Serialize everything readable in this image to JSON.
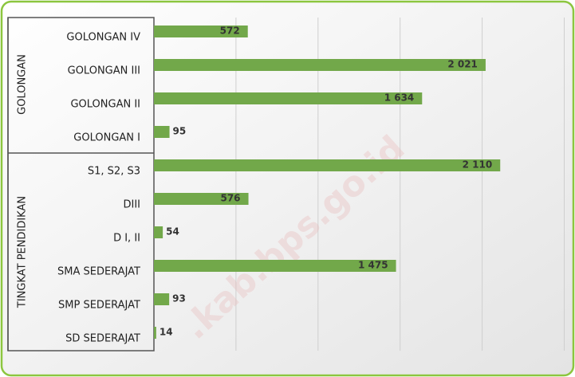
{
  "chart_data": {
    "type": "bar",
    "orientation": "horizontal",
    "categories": [
      "GOLONGAN IV",
      "GOLONGAN III",
      "GOLONGAN II",
      "GOLONGAN I",
      "S1, S2, S3",
      "DIII",
      "D I, II",
      "SMA SEDERAJAT",
      "SMP SEDERAJAT",
      "SD SEDERAJAT"
    ],
    "values": [
      572,
      2021,
      1634,
      95,
      2110,
      576,
      54,
      1475,
      93,
      14
    ],
    "value_labels": [
      "572",
      "2 021",
      "1 634",
      "95",
      "2 110",
      "576",
      "54",
      "1 475",
      "93",
      "14"
    ],
    "groups": [
      {
        "name": "GOLONGAN",
        "size": 4
      },
      {
        "name": "TINGKAT PENDIDIKAN",
        "size": 6
      }
    ],
    "color": "#72a84a",
    "xlim": [
      0,
      2500
    ],
    "xticks": [
      0,
      500,
      1000,
      1500,
      2000,
      2500
    ],
    "grid": true,
    "watermark": ".kab.bps.go.id"
  }
}
